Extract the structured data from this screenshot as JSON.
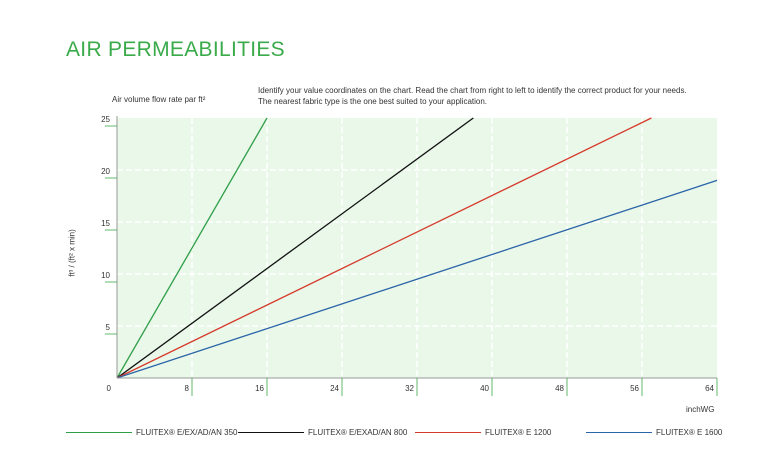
{
  "page": {
    "title": "AIR PERMEABILITIES",
    "instructions": "Identify your value coordinates on the chart. Read the chart from right to left to identify the correct product for your needs. The nearest fabric type is the one best suited to your application."
  },
  "chart_data": {
    "type": "line",
    "title": "",
    "ytitle": "Air volume flow rate par ft²",
    "ylabel": "ft³ / (ft² x min)",
    "xlabel": "inchWG",
    "xlim": [
      0,
      64
    ],
    "ylim": [
      0,
      25
    ],
    "xticks": [
      "0",
      "8",
      "16",
      "24",
      "32",
      "40",
      "48",
      "56",
      "64"
    ],
    "yticks": [
      "5",
      "10",
      "15",
      "20",
      "25"
    ],
    "grid": true,
    "background": "#e9f8e9",
    "legend_position": "bottom",
    "series": [
      {
        "name": "FLUITEX® E/EX/AD/AN 350",
        "color": "#2f9e48",
        "x": [
          0,
          16
        ],
        "y": [
          0,
          25
        ]
      },
      {
        "name": "FLUITEX® E/EXAD/AN 800",
        "color": "#111111",
        "x": [
          0,
          38
        ],
        "y": [
          0,
          25
        ]
      },
      {
        "name": "FLUITEX® E 1200",
        "color": "#d63a2c",
        "x": [
          0,
          57
        ],
        "y": [
          0,
          25
        ]
      },
      {
        "name": "FLUITEX® E 1600",
        "color": "#2b64a8",
        "x": [
          0,
          64
        ],
        "y": [
          0,
          19
        ]
      }
    ]
  }
}
